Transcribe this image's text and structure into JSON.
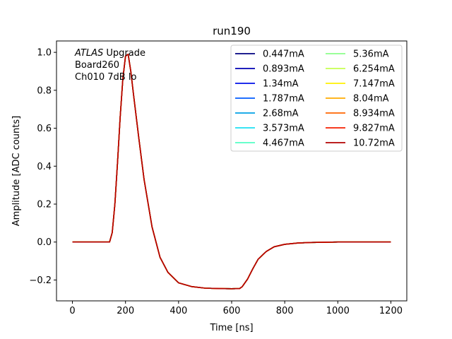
{
  "chart_data": {
    "type": "line",
    "title": "run190",
    "xlabel": "Time [ns]",
    "ylabel": "Amplitude [ADC counts]",
    "xlim": [
      -60,
      1260
    ],
    "ylim": [
      -0.31,
      1.06
    ],
    "xticks": [
      0,
      200,
      400,
      600,
      800,
      1000,
      1200
    ],
    "yticks": [
      -0.2,
      0.0,
      0.2,
      0.4,
      0.6,
      0.8,
      1.0
    ],
    "xtick_labels": [
      "0",
      "200",
      "400",
      "600",
      "800",
      "1000",
      "1200"
    ],
    "ytick_labels": [
      "−0.2",
      "0.0",
      "0.2",
      "0.4",
      "0.6",
      "0.8",
      "1.0"
    ],
    "grid": false,
    "legend_position": "top-right",
    "legend_columns": 2,
    "annotation": {
      "lines": [
        {
          "italic": "ATLAS",
          "text": " Upgrade"
        },
        {
          "italic": "",
          "text": " Board260"
        },
        {
          "italic": "",
          "text": " Ch010 7dB lo"
        }
      ]
    },
    "x": [
      0,
      100,
      140,
      150,
      160,
      170,
      180,
      190,
      200,
      210,
      220,
      230,
      250,
      270,
      300,
      330,
      360,
      400,
      450,
      500,
      550,
      600,
      630,
      640,
      660,
      680,
      700,
      730,
      760,
      800,
      850,
      900,
      1000,
      1100,
      1200
    ],
    "series": [
      {
        "name": "0.447mA",
        "color": "#000080"
      },
      {
        "name": "0.893mA",
        "color": "#0000b3"
      },
      {
        "name": "1.34mA",
        "color": "#0010ea"
      },
      {
        "name": "1.787mA",
        "color": "#005cff"
      },
      {
        "name": "2.68mA",
        "color": "#00a0e6"
      },
      {
        "name": "3.573mA",
        "color": "#1ce0f2"
      },
      {
        "name": "4.467mA",
        "color": "#52ffc5"
      },
      {
        "name": "5.36mA",
        "color": "#8cff8a"
      },
      {
        "name": "6.254mA",
        "color": "#c6ff51"
      },
      {
        "name": "7.147mA",
        "color": "#fff000"
      },
      {
        "name": "8.04mA",
        "color": "#ffab00"
      },
      {
        "name": "8.934mA",
        "color": "#ff6400"
      },
      {
        "name": "9.827mA",
        "color": "#f42000"
      },
      {
        "name": "10.72mA",
        "color": "#b30000"
      }
    ],
    "values": [
      0.0,
      0.0,
      0.0,
      0.05,
      0.2,
      0.42,
      0.66,
      0.86,
      0.98,
      0.99,
      0.9,
      0.78,
      0.55,
      0.33,
      0.08,
      -0.08,
      -0.16,
      -0.215,
      -0.235,
      -0.243,
      -0.245,
      -0.246,
      -0.245,
      -0.235,
      -0.195,
      -0.14,
      -0.09,
      -0.05,
      -0.025,
      -0.012,
      -0.005,
      -0.002,
      0.0,
      0.0,
      0.0
    ]
  }
}
